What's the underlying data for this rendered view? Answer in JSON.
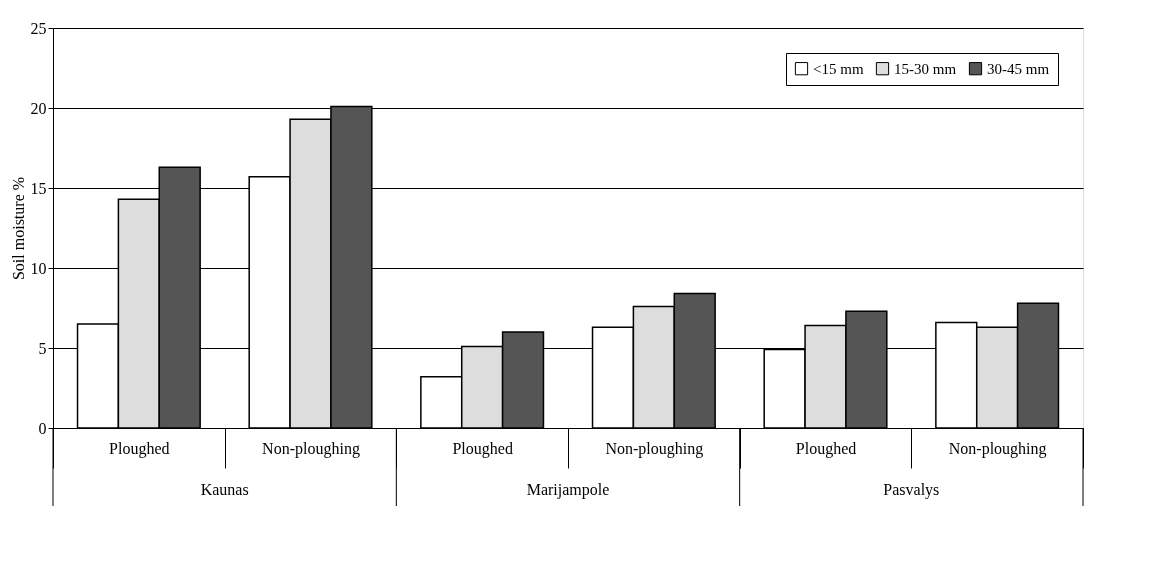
{
  "chart_data": {
    "type": "bar",
    "ylabel": "Soil moisture %",
    "categories": [
      "Ploughed",
      "Non-ploughing",
      "Ploughed",
      "Non-ploughing",
      "Ploughed",
      "Non-ploughing"
    ],
    "annotations": [
      "Kaunas",
      "Marijampole",
      "Pasvalys"
    ],
    "series": [
      {
        "name": "<15 mm",
        "color": "#ffffff",
        "values": [
          6.5,
          15.7,
          3.2,
          6.3,
          4.9,
          6.6
        ]
      },
      {
        "name": "15-30 mm",
        "color": "#dddddd",
        "values": [
          14.3,
          19.3,
          5.1,
          7.6,
          6.4,
          6.3
        ]
      },
      {
        "name": "30-45 mm",
        "color": "#555555",
        "values": [
          16.3,
          20.1,
          6.0,
          8.4,
          7.3,
          7.8
        ]
      }
    ],
    "ylim": [
      0,
      25
    ],
    "yticks": [
      0,
      5,
      10,
      15,
      20,
      25
    ],
    "grid": "y",
    "legend": "top right"
  }
}
